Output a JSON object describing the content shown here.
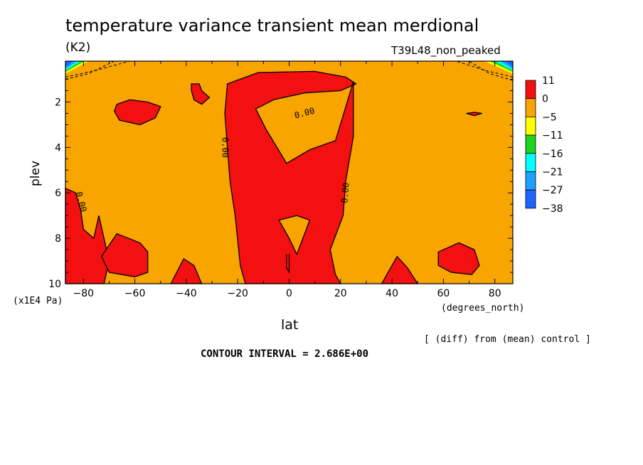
{
  "header": {
    "title": "temperature variance transient mean merdional",
    "units": "(K2)",
    "run": "T39L48_non_peaked"
  },
  "axes": {
    "xlabel": "lat",
    "ylabel": "plev",
    "y_unit": "(x1E4 Pa)",
    "x_unit": "(degrees_north)"
  },
  "footer": {
    "diff_note": "[ (diff) from (mean) control ]",
    "contour_interval": "CONTOUR INTERVAL = 2.686E+00"
  },
  "colors": {
    "positive": "#f21010",
    "zero": "#f9a500",
    "level_m5": "#ffff00",
    "level_m11": "#1ed31e",
    "level_m16": "#00ffff",
    "level_m21": "#1ea0ff",
    "level_m27": "#1e64ff"
  },
  "chart_data": {
    "type": "heatmap",
    "title": "temperature variance transient mean merdional",
    "xlabel": "lat",
    "ylabel": "plev",
    "xlim": [
      -87,
      87
    ],
    "ylim": [
      10,
      0.2
    ],
    "x_ticks": [
      -80,
      -60,
      -40,
      -20,
      0,
      20,
      40,
      60,
      80
    ],
    "y_ticks": [
      2,
      4,
      6,
      8,
      10
    ],
    "colorbar_levels": [
      "11",
      "0",
      "-5",
      "-11",
      "-16",
      "-21",
      "-27",
      "-38"
    ],
    "contour_labels": [
      "0.00",
      "0.00",
      "0.00",
      "0.00"
    ],
    "contour_interval": 2.686,
    "positive_regions": [
      {
        "name": "central-tropical-column",
        "points": [
          [
            -24,
            1.2
          ],
          [
            -12,
            0.7
          ],
          [
            10,
            0.65
          ],
          [
            22,
            0.9
          ],
          [
            26,
            1.2
          ],
          [
            20,
            1.5
          ],
          [
            6,
            1.6
          ],
          [
            -6,
            1.9
          ],
          [
            -13,
            2.3
          ],
          [
            -9,
            3.2
          ],
          [
            -1,
            4.7
          ],
          [
            8,
            4.1
          ],
          [
            18,
            3.7
          ],
          [
            25,
            1.1
          ],
          [
            25,
            3.5
          ],
          [
            22,
            5.5
          ],
          [
            21,
            7
          ],
          [
            16,
            8.5
          ],
          [
            18,
            9.6
          ],
          [
            20,
            10
          ],
          [
            -17,
            10
          ],
          [
            -19,
            9.2
          ],
          [
            -21,
            7
          ],
          [
            -23,
            5.5
          ],
          [
            -24,
            4
          ],
          [
            -25,
            2.5
          ]
        ]
      },
      {
        "name": "south-polar-lower",
        "points": [
          [
            -87,
            5.8
          ],
          [
            -83,
            6
          ],
          [
            -81,
            6.8
          ],
          [
            -80,
            7.6
          ],
          [
            -76,
            8
          ],
          [
            -74,
            7
          ],
          [
            -72,
            8
          ],
          [
            -70,
            9
          ],
          [
            -72,
            10
          ],
          [
            -87,
            10
          ]
        ]
      },
      {
        "name": "south-midlat-lower",
        "points": [
          [
            -73,
            8.8
          ],
          [
            -67,
            7.8
          ],
          [
            -58,
            8.2
          ],
          [
            -55,
            8.6
          ],
          [
            -55,
            9.5
          ],
          [
            -60,
            9.7
          ],
          [
            -70,
            9.5
          ]
        ]
      },
      {
        "name": "south-midlat-upper",
        "points": [
          [
            -67,
            2.1
          ],
          [
            -62,
            1.9
          ],
          [
            -55,
            2
          ],
          [
            -50,
            2.2
          ],
          [
            -52,
            2.7
          ],
          [
            -58,
            3
          ],
          [
            -66,
            2.8
          ],
          [
            -68,
            2.4
          ]
        ]
      },
      {
        "name": "south-small-upper",
        "points": [
          [
            -38,
            1.2
          ],
          [
            -35,
            1.2
          ],
          [
            -34,
            1.5
          ],
          [
            -31,
            1.8
          ],
          [
            -34,
            2.1
          ],
          [
            -37,
            1.9
          ],
          [
            -38,
            1.5
          ]
        ]
      },
      {
        "name": "south-sub-lower",
        "points": [
          [
            -46,
            10
          ],
          [
            -41,
            8.9
          ],
          [
            -37,
            9.2
          ],
          [
            -34,
            10
          ]
        ]
      },
      {
        "name": "north-sub-lower",
        "points": [
          [
            36,
            10
          ],
          [
            42,
            8.8
          ],
          [
            46,
            9.3
          ],
          [
            50,
            10
          ]
        ]
      },
      {
        "name": "north-midlat-lower",
        "points": [
          [
            58,
            8.6
          ],
          [
            66,
            8.2
          ],
          [
            72,
            8.5
          ],
          [
            74,
            9.2
          ],
          [
            71,
            9.6
          ],
          [
            63,
            9.5
          ],
          [
            58,
            9.2
          ]
        ]
      },
      {
        "name": "north-small-upper",
        "points": [
          [
            69,
            2.5
          ],
          [
            72,
            2.45
          ],
          [
            75,
            2.5
          ],
          [
            72,
            2.6
          ]
        ]
      }
    ],
    "zero_regions": [
      {
        "name": "tropical-gap",
        "points": [
          [
            -4,
            7.2
          ],
          [
            3,
            7.0
          ],
          [
            8,
            7.2
          ],
          [
            6,
            7.8
          ],
          [
            3,
            8.7
          ],
          [
            0,
            8.0
          ],
          [
            -2,
            7.6
          ]
        ]
      }
    ]
  }
}
